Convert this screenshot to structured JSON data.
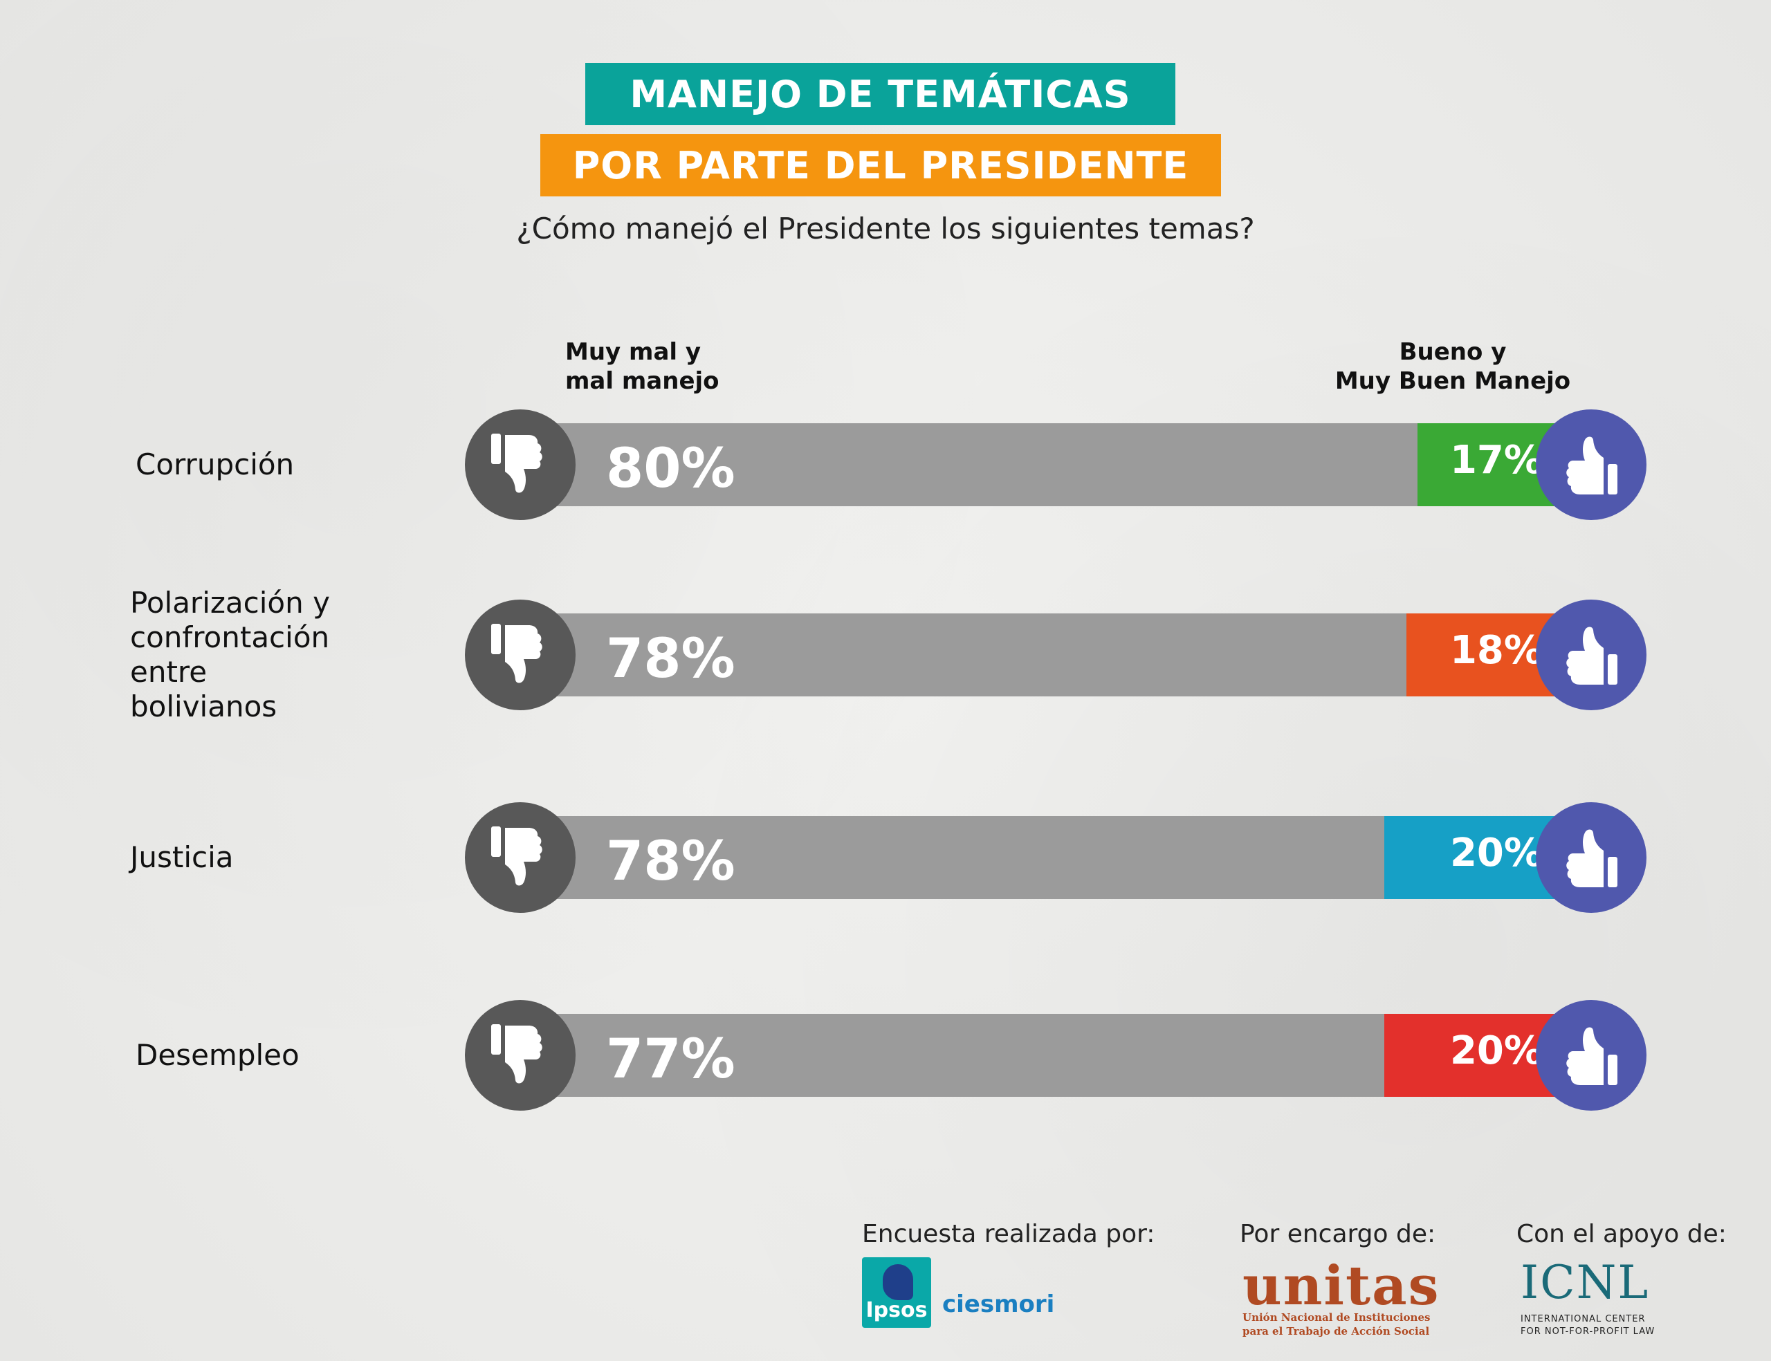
{
  "header": {
    "title_line1": "MANEJO DE TEMÁTICAS",
    "title_line2": "POR PARTE DEL PRESIDENTE",
    "subtitle": "¿Cómo manejó el Presidente los siguientes temas?"
  },
  "colors": {
    "title1_bg": "#0aa39a",
    "title2_bg": "#f5950f",
    "bad_track": "#9b9b9b",
    "thumb_down_bg": "#585858",
    "thumb_up_bg": "#5058ad"
  },
  "icons": {
    "bad": "thumbs-down-icon",
    "good": "thumbs-up-icon"
  },
  "chart_data": {
    "type": "bar",
    "stacked": true,
    "orientation": "horizontal",
    "legend": {
      "bad_line1": "Muy mal y",
      "bad_line2": "mal manejo",
      "good_line1": "Bueno y",
      "good_line2": "Muy Buen Manejo"
    },
    "categories": [
      {
        "label_lines": [
          "Corrupción"
        ],
        "label": "Corrupción"
      },
      {
        "label_lines": [
          "Polarización y",
          "confrontación",
          "entre",
          "bolivianos"
        ],
        "label": "Polarización y confrontación entre bolivianos"
      },
      {
        "label_lines": [
          "Justicia"
        ],
        "label": "Justicia"
      },
      {
        "label_lines": [
          "Desempleo"
        ],
        "label": "Desempleo"
      }
    ],
    "series": [
      {
        "name": "Muy mal y mal manejo",
        "values": [
          80,
          78,
          78,
          77
        ],
        "labels": [
          "80%",
          "78%",
          "78%",
          "77%"
        ]
      },
      {
        "name": "Bueno y Muy Buen Manejo",
        "values": [
          17,
          18,
          20,
          20
        ],
        "labels": [
          "17%",
          "18%",
          "20%",
          "20%"
        ],
        "colors": [
          "#3aa935",
          "#e8521f",
          "#16a0c6",
          "#e3302c"
        ]
      }
    ],
    "xlim": [
      0,
      100
    ]
  },
  "footer": {
    "credit1": "Encuesta realizada por:",
    "credit2": "Por encargo de:",
    "credit3": "Con el apoyo de:",
    "ipsos": "Ipsos",
    "ciesmori": "ciesmori",
    "unitas": "unitas",
    "unitas_sub1": "Unión Nacional de Instituciones",
    "unitas_sub2": "para el Trabajo de Acción Social",
    "icnl": "ICNL",
    "icnl_sub1": "INTERNATIONAL CENTER",
    "icnl_sub2": "FOR NOT-FOR-PROFIT LAW"
  }
}
